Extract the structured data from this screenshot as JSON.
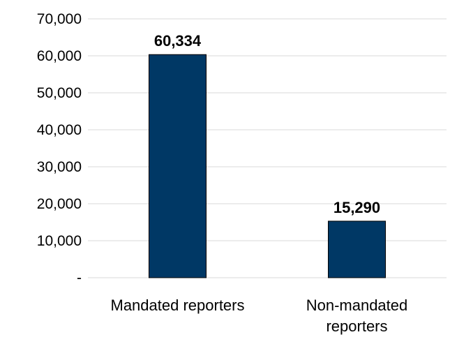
{
  "chart_data": {
    "type": "bar",
    "categories": [
      [
        "Mandated reporters"
      ],
      [
        "Non-mandated",
        "reporters"
      ]
    ],
    "values": [
      60334,
      15290
    ],
    "data_labels": [
      "60,334",
      "15,290"
    ],
    "ylim": [
      0,
      70000
    ],
    "yticks": [
      0,
      10000,
      20000,
      30000,
      40000,
      50000,
      60000,
      70000
    ],
    "ytick_labels": [
      "-",
      "10,000",
      "20,000",
      "30,000",
      "40,000",
      "50,000",
      "60,000",
      "70,000"
    ],
    "title": "",
    "xlabel": "",
    "ylabel": "",
    "grid": true,
    "legend": "none",
    "bar_color": "#003865",
    "grid_color": "#d9d9d9"
  }
}
